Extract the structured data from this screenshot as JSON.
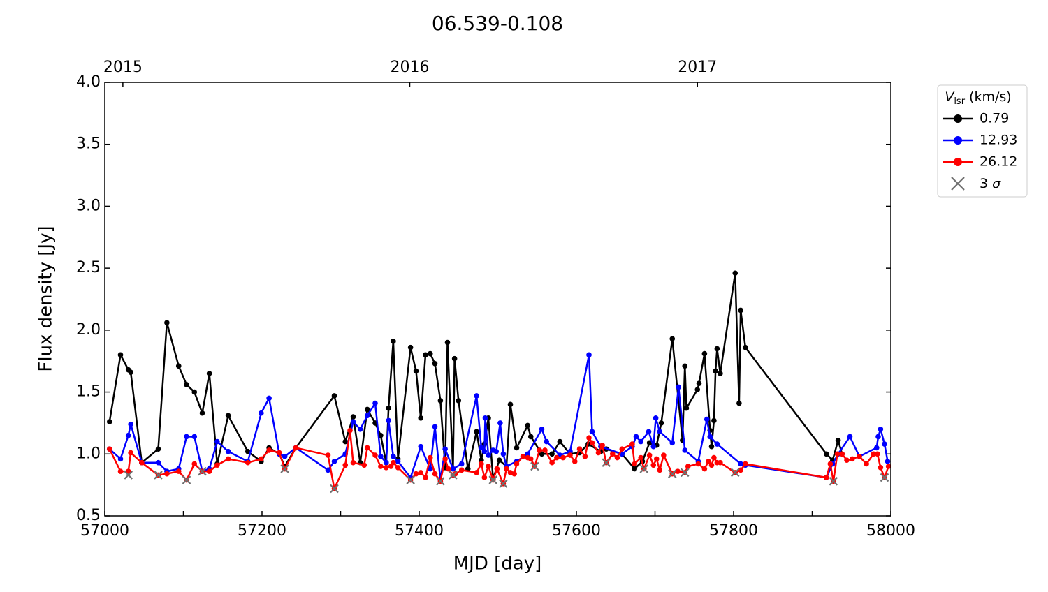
{
  "chart_data": {
    "type": "line",
    "title": "06.539-0.108",
    "xlabel": "MJD [day]",
    "ylabel": "Flux density [Jy]",
    "xlim": [
      57000,
      58000
    ],
    "ylim": [
      0.5,
      4.0
    ],
    "xticks": [
      57000,
      57200,
      57400,
      57600,
      57800,
      58000
    ],
    "xminorticks": [
      57100,
      57300,
      57500,
      57700,
      57900
    ],
    "x2ticks": [
      {
        "value": 57023,
        "label": "2015"
      },
      {
        "value": 57388,
        "label": "2016"
      },
      {
        "value": 57754,
        "label": "2017"
      }
    ],
    "yticks": [
      0.5,
      {
        "value": 1.0,
        "label": "1.0"
      },
      1.5,
      {
        "value": 2.0,
        "label": "2.0"
      },
      2.5,
      {
        "value": 3.0,
        "label": "3.0"
      },
      3.5,
      {
        "value": 4.0,
        "label": "4.0"
      }
    ],
    "legend_title": {
      "symbol": "V",
      "subscript": "lsr",
      "unit": "(km/s)"
    },
    "legend_position": "outside-upper-right",
    "series": [
      {
        "name": "0.79",
        "color": "#000000",
        "x": [
          57006,
          57020,
          57030,
          57033,
          57047,
          57068,
          57079,
          57094,
          57104,
          57114,
          57124,
          57133,
          57143,
          57157,
          57182,
          57199,
          57209,
          57222,
          57229,
          57243,
          57292,
          57306,
          57316,
          57325,
          57334,
          57344,
          57351,
          57358,
          57361,
          57367,
          57373,
          57389,
          57396,
          57402,
          57408,
          57414,
          57420,
          57427,
          57433,
          57436,
          57443,
          57445,
          57450,
          57462,
          57473,
          57479,
          57483,
          57488,
          57494,
          57502,
          57511,
          57516,
          57524,
          57538,
          57542,
          57556,
          57569,
          57579,
          57592,
          57604,
          57615,
          57631,
          57638,
          57658,
          57674,
          57684,
          57693,
          57702,
          57708,
          57722,
          57735,
          57738,
          57740,
          57754,
          57756,
          57763,
          57770,
          57772,
          57775,
          57777,
          57779,
          57783,
          57802,
          57807,
          57809,
          57815,
          57918,
          57926,
          57933,
          57938
        ],
        "values": [
          1.26,
          1.8,
          1.68,
          1.66,
          0.93,
          1.04,
          2.06,
          1.71,
          1.56,
          1.5,
          1.33,
          1.65,
          0.92,
          1.31,
          1.02,
          0.94,
          1.05,
          1.0,
          0.9,
          1.05,
          1.47,
          1.1,
          1.3,
          0.93,
          1.36,
          1.25,
          1.15,
          0.93,
          1.37,
          1.91,
          0.96,
          1.86,
          1.67,
          1.29,
          1.8,
          1.81,
          1.73,
          1.43,
          0.89,
          1.9,
          0.88,
          1.77,
          1.43,
          0.88,
          1.18,
          0.95,
          1.08,
          1.29,
          0.8,
          0.95,
          0.9,
          1.4,
          1.05,
          1.23,
          1.14,
          1.0,
          1.0,
          1.1,
          1.0,
          1.01,
          1.08,
          1.02,
          1.04,
          1.0,
          0.88,
          0.94,
          1.09,
          1.07,
          1.25,
          1.93,
          1.11,
          1.71,
          1.37,
          1.52,
          1.57,
          1.81,
          1.19,
          1.06,
          1.27,
          1.67,
          1.85,
          1.65,
          2.46,
          1.41,
          2.16,
          1.86,
          1.0,
          0.95,
          1.11,
          1.0
        ]
      },
      {
        "name": "12.93",
        "color": "#0000ff",
        "x": [
          57006,
          57020,
          57030,
          57033,
          57047,
          57068,
          57079,
          57094,
          57104,
          57114,
          57124,
          57133,
          57143,
          57157,
          57182,
          57199,
          57209,
          57222,
          57229,
          57243,
          57284,
          57292,
          57306,
          57316,
          57325,
          57334,
          57344,
          57351,
          57358,
          57361,
          57367,
          57373,
          57389,
          57402,
          57414,
          57420,
          57427,
          57433,
          57443,
          57454,
          57473,
          57479,
          57483,
          57484,
          57488,
          57494,
          57498,
          57503,
          57507,
          57511,
          57524,
          57538,
          57556,
          57562,
          57579,
          57592,
          57616,
          57620,
          57631,
          57658,
          57671,
          57676,
          57682,
          57692,
          57698,
          57701,
          57706,
          57722,
          57730,
          57738,
          57755,
          57766,
          57770,
          57779,
          57809,
          57815,
          57918,
          57926,
          57933,
          57948,
          57960,
          57982,
          57984,
          57987,
          57992,
          57996
        ],
        "values": [
          1.04,
          0.96,
          1.15,
          1.24,
          0.93,
          0.93,
          0.86,
          0.88,
          1.14,
          1.14,
          0.86,
          0.88,
          1.1,
          1.02,
          0.94,
          1.33,
          1.45,
          1.0,
          0.98,
          1.05,
          0.87,
          0.94,
          1.0,
          1.26,
          1.2,
          1.31,
          1.41,
          0.98,
          0.93,
          1.27,
          0.98,
          0.94,
          0.81,
          1.06,
          0.88,
          1.22,
          0.79,
          1.04,
          0.88,
          0.92,
          1.47,
          1.05,
          1.02,
          1.29,
          0.99,
          1.03,
          1.02,
          1.25,
          1.0,
          0.9,
          0.94,
          1.0,
          1.2,
          1.1,
          0.99,
          1.02,
          1.8,
          1.18,
          1.06,
          1.0,
          1.06,
          1.14,
          1.1,
          1.18,
          1.06,
          1.29,
          1.18,
          1.09,
          1.54,
          1.03,
          0.94,
          1.28,
          1.14,
          1.08,
          0.92,
          0.91,
          0.81,
          0.92,
          1.0,
          1.14,
          0.98,
          1.05,
          1.14,
          1.2,
          1.08,
          0.94
        ]
      },
      {
        "name": "26.12",
        "color": "#ff0000",
        "x": [
          57006,
          57020,
          57030,
          57033,
          57047,
          57068,
          57079,
          57094,
          57104,
          57114,
          57124,
          57133,
          57143,
          57157,
          57182,
          57199,
          57209,
          57222,
          57229,
          57243,
          57284,
          57292,
          57306,
          57312,
          57316,
          57330,
          57334,
          57344,
          57351,
          57358,
          57364,
          57367,
          57373,
          57389,
          57396,
          57402,
          57408,
          57414,
          57420,
          57427,
          57433,
          57437,
          57443,
          57446,
          57454,
          57473,
          57479,
          57483,
          57488,
          57494,
          57499,
          57507,
          57511,
          57516,
          57521,
          57524,
          57532,
          57538,
          57542,
          57547,
          57553,
          57560,
          57569,
          57575,
          57583,
          57592,
          57598,
          57604,
          57611,
          57616,
          57620,
          57628,
          57633,
          57638,
          57646,
          57652,
          57658,
          57671,
          57674,
          57682,
          57686,
          57693,
          57698,
          57702,
          57706,
          57711,
          57722,
          57729,
          57738,
          57742,
          57755,
          57763,
          57768,
          57772,
          57775,
          57779,
          57783,
          57802,
          57809,
          57815,
          57918,
          57923,
          57927,
          57932,
          57938,
          57944,
          57951,
          57960,
          57969,
          57978,
          57983,
          57987,
          57992,
          57997
        ],
        "values": [
          1.04,
          0.86,
          0.86,
          1.01,
          0.93,
          0.83,
          0.84,
          0.86,
          0.79,
          0.92,
          0.86,
          0.86,
          0.91,
          0.96,
          0.93,
          0.96,
          1.03,
          1.01,
          0.88,
          1.05,
          0.99,
          0.72,
          0.91,
          1.19,
          0.93,
          0.91,
          1.05,
          0.99,
          0.9,
          0.89,
          0.9,
          0.93,
          0.89,
          0.79,
          0.84,
          0.85,
          0.81,
          0.97,
          0.84,
          0.78,
          0.96,
          0.88,
          0.83,
          0.84,
          0.87,
          0.85,
          0.92,
          0.81,
          0.9,
          0.79,
          0.88,
          0.76,
          0.88,
          0.85,
          0.84,
          0.92,
          0.98,
          0.97,
          0.96,
          0.9,
          1.03,
          1.03,
          0.93,
          0.97,
          0.97,
          0.99,
          0.94,
          1.04,
          0.98,
          1.13,
          1.09,
          1.01,
          1.07,
          0.93,
          1.0,
          0.97,
          1.04,
          1.08,
          0.92,
          0.97,
          0.88,
          0.99,
          0.91,
          0.96,
          0.87,
          0.99,
          0.84,
          0.86,
          0.85,
          0.9,
          0.92,
          0.88,
          0.94,
          0.91,
          0.97,
          0.93,
          0.93,
          0.85,
          0.87,
          0.92,
          0.81,
          0.92,
          0.78,
          1.0,
          1.0,
          0.95,
          0.96,
          0.98,
          0.92,
          1.0,
          1.0,
          0.89,
          0.81,
          0.9
        ]
      },
      {
        "name": {
          "text": "3",
          "symbol": "σ"
        },
        "color": "#707070",
        "marker": "x",
        "x": [
          57030,
          57068,
          57104,
          57124,
          57229,
          57292,
          57389,
          57427,
          57443,
          57494,
          57507,
          57547,
          57638,
          57686,
          57722,
          57738,
          57802,
          57927,
          57992
        ],
        "values": [
          0.83,
          0.83,
          0.79,
          0.86,
          0.88,
          0.72,
          0.79,
          0.78,
          0.83,
          0.79,
          0.76,
          0.9,
          0.93,
          0.88,
          0.84,
          0.85,
          0.85,
          0.78,
          0.81
        ]
      }
    ]
  }
}
